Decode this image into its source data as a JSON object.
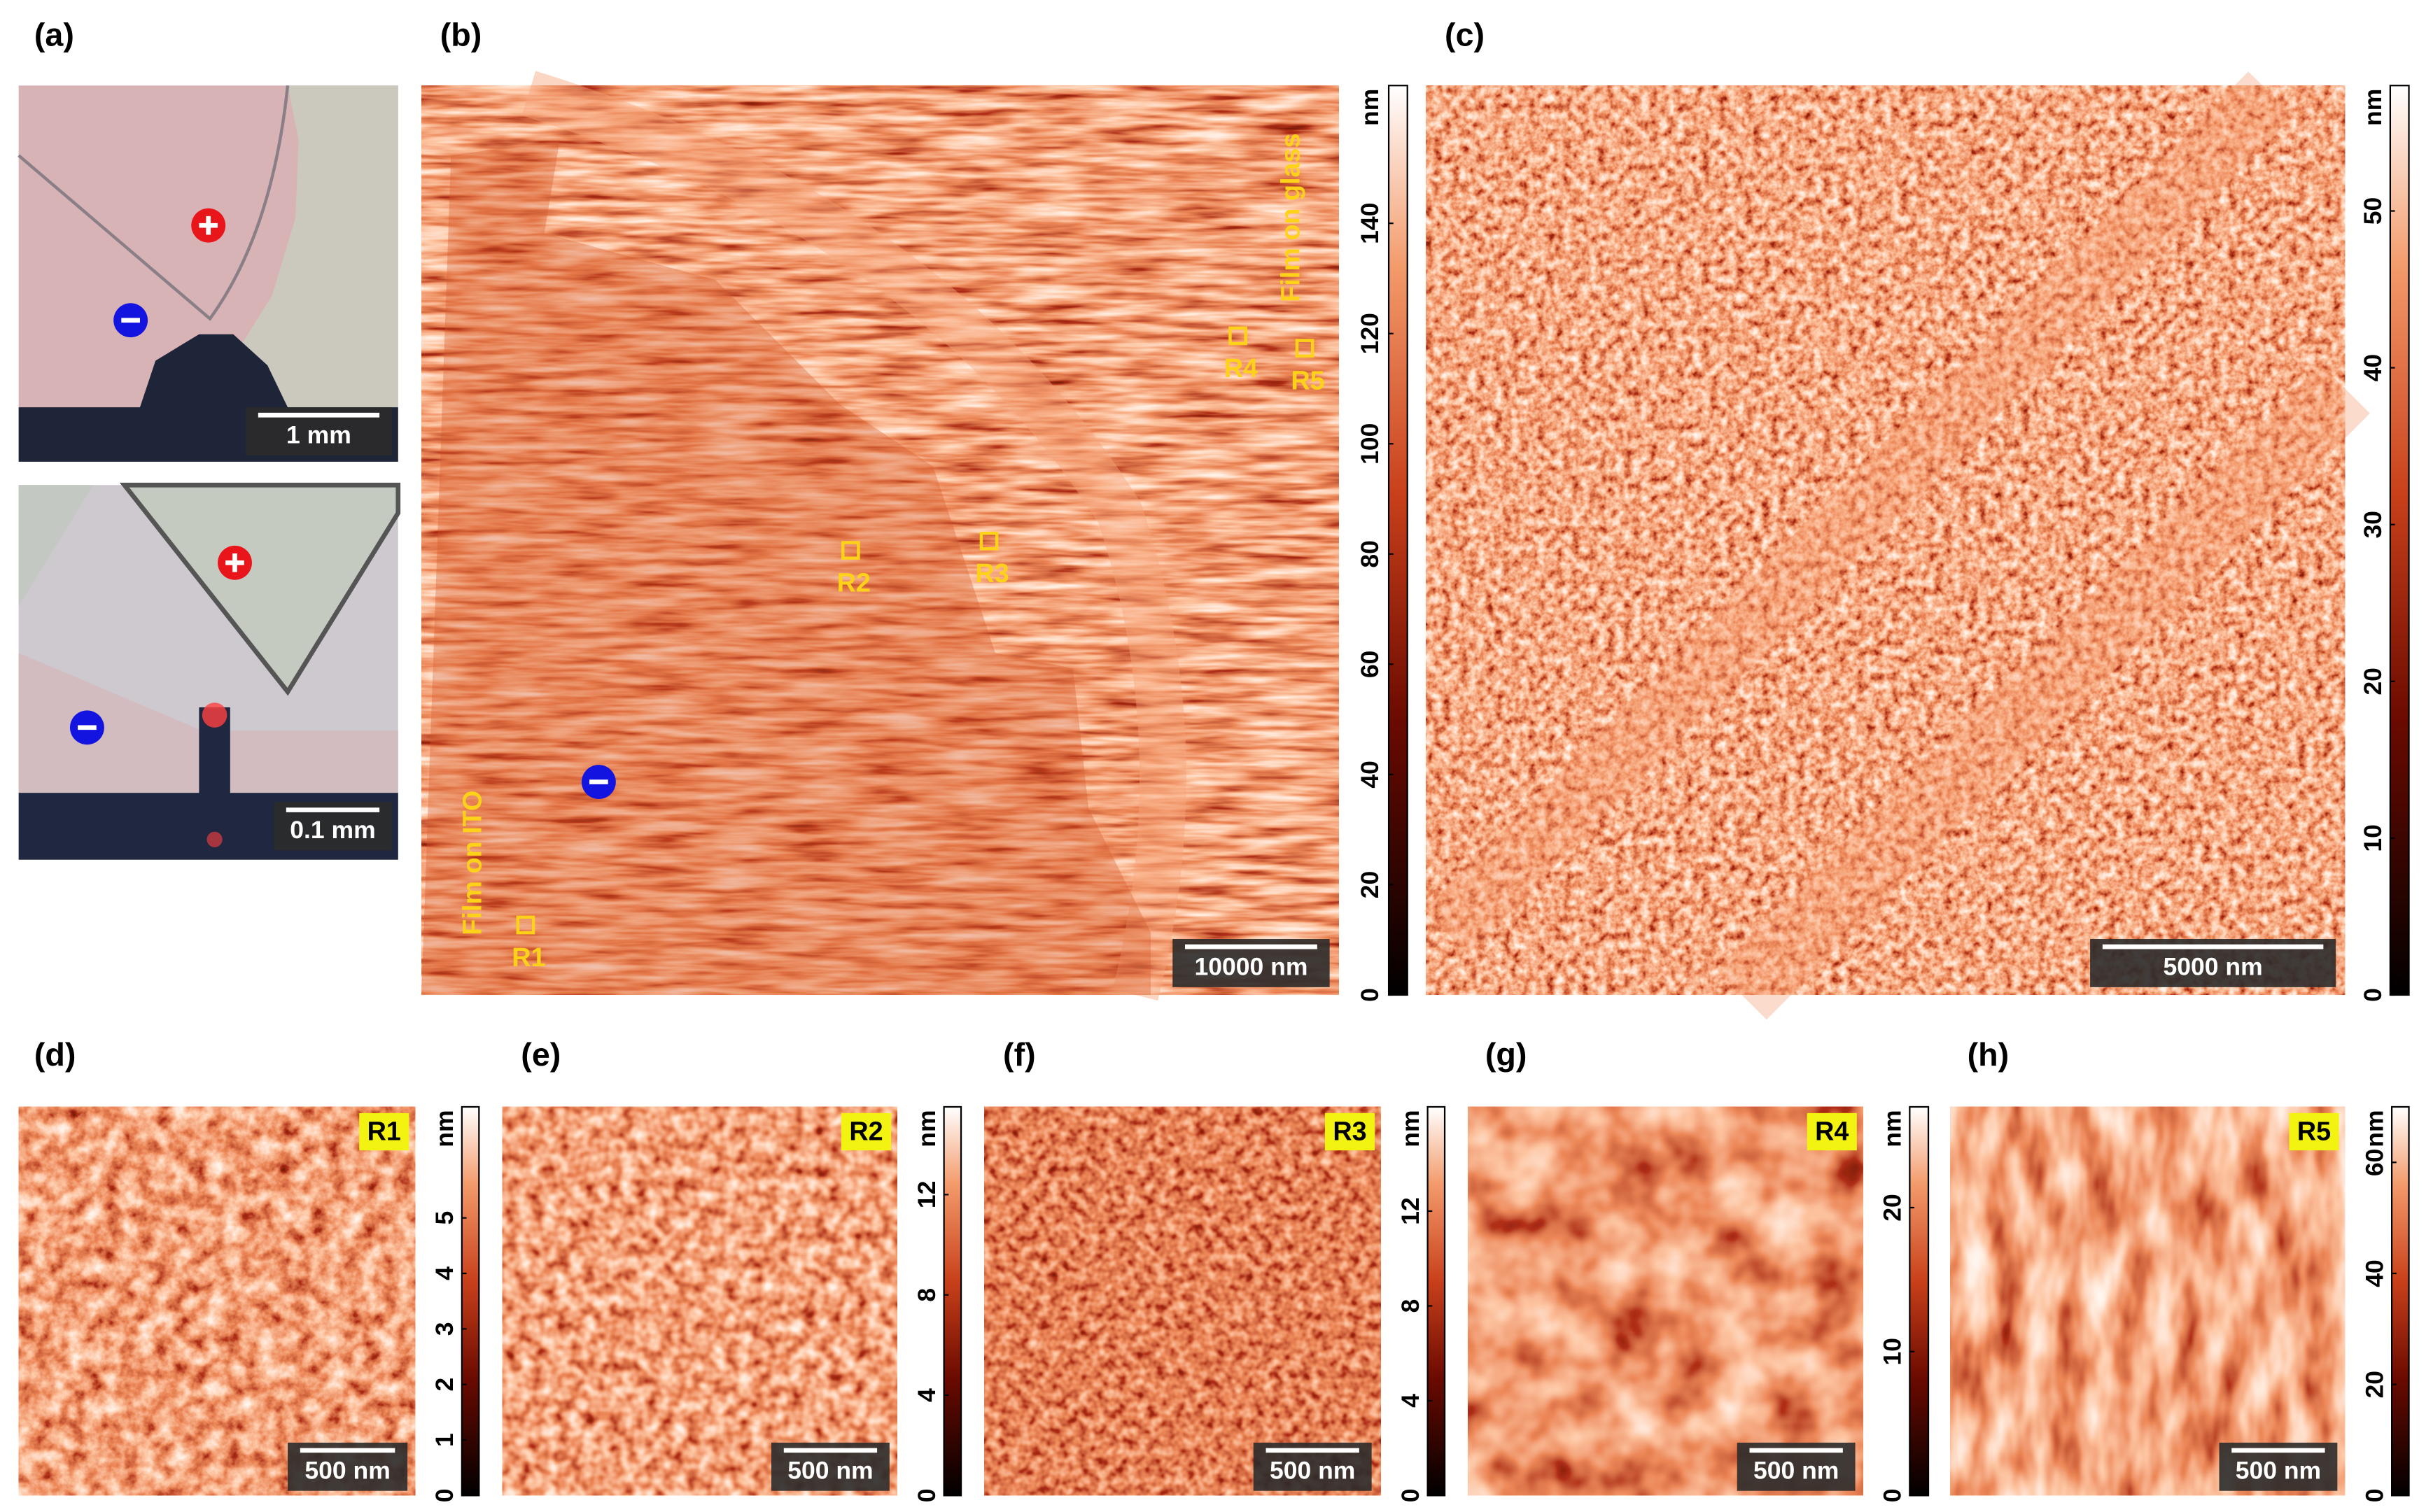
{
  "panels": {
    "a": {
      "label": "(a)",
      "scalebars": [
        "1 mm",
        "0.1 mm"
      ]
    },
    "b": {
      "label": "(b)",
      "scalebar": "10000 nm",
      "annotations": {
        "ito": "Film on ITO",
        "glass": "Film on glass"
      },
      "regions": [
        "R1",
        "R2",
        "R3",
        "R4",
        "R5"
      ],
      "colorbar": {
        "unit": "nm",
        "lim": [
          0,
          165
        ],
        "ticks": [
          0,
          20,
          40,
          60,
          80,
          100,
          120,
          140
        ]
      }
    },
    "c": {
      "label": "(c)",
      "scalebar": "5000 nm",
      "colorbar": {
        "unit": "nm",
        "lim": [
          0,
          58
        ],
        "ticks": [
          0,
          10,
          20,
          30,
          40,
          50
        ]
      }
    },
    "d": {
      "label": "(d)",
      "tag": "R1",
      "scalebar": "500 nm",
      "colorbar": {
        "unit": "nm",
        "lim": [
          0,
          7
        ],
        "ticks": [
          0,
          1,
          2,
          3,
          4,
          5
        ]
      }
    },
    "e": {
      "label": "(e)",
      "tag": "R2",
      "scalebar": "500 nm",
      "colorbar": {
        "unit": "nm",
        "lim": [
          0,
          15.5
        ],
        "ticks": [
          0,
          4,
          8,
          12
        ]
      }
    },
    "f": {
      "label": "(f)",
      "tag": "R3",
      "scalebar": "500 nm",
      "colorbar": {
        "unit": "nm",
        "lim": [
          0,
          16.4
        ],
        "ticks": [
          0,
          4,
          8,
          12
        ]
      }
    },
    "g": {
      "label": "(g)",
      "tag": "R4",
      "scalebar": "500 nm",
      "colorbar": {
        "unit": "nm",
        "lim": [
          0,
          27
        ],
        "ticks": [
          0,
          10,
          20
        ]
      }
    },
    "h": {
      "label": "(h)",
      "tag": "R5",
      "scalebar": "500 nm",
      "colorbar": {
        "unit": "nm",
        "lim": [
          0,
          70
        ],
        "ticks": [
          0,
          20,
          40,
          60
        ]
      }
    }
  }
}
